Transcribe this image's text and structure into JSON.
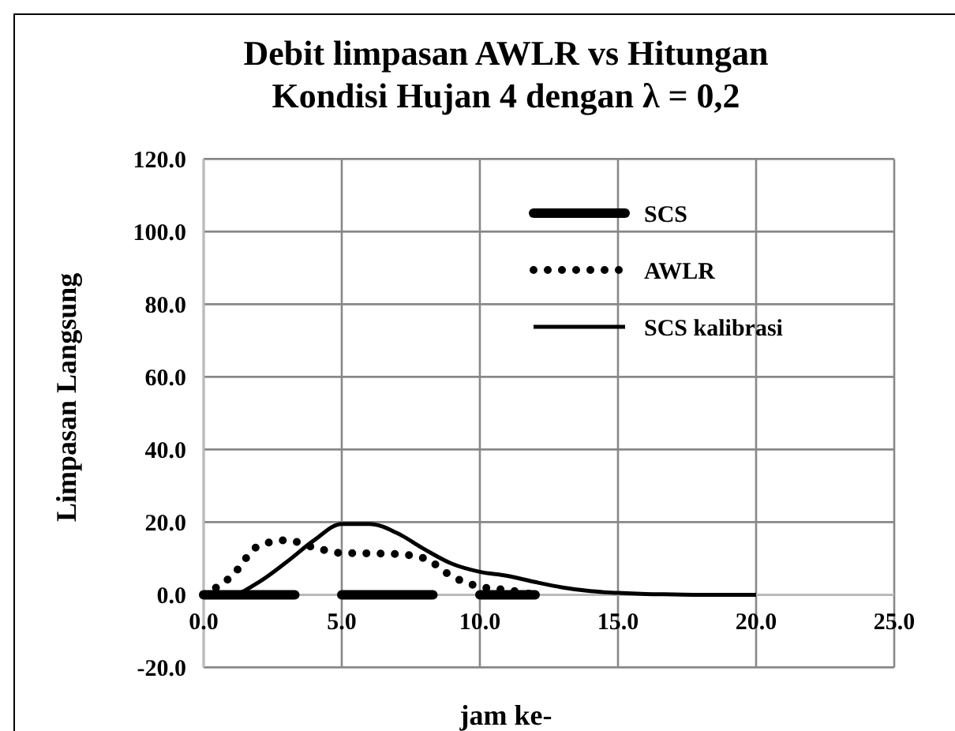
{
  "chart_data": {
    "type": "line",
    "title": "Debit limpasan AWLR vs Hitungan\nKondisi Hujan 4 dengan λ = 0,2",
    "xlabel": "jam ke-",
    "ylabel": "Limpasan Langsung",
    "xlim": [
      0,
      25
    ],
    "ylim": [
      -20,
      120
    ],
    "xticks": [
      {
        "value": 0,
        "label": "0.0"
      },
      {
        "value": 5,
        "label": "5.0"
      },
      {
        "value": 10,
        "label": "10.0"
      },
      {
        "value": 15,
        "label": "15.0"
      },
      {
        "value": 20,
        "label": "20.0"
      },
      {
        "value": 25,
        "label": "25.0"
      }
    ],
    "yticks": [
      {
        "value": -20,
        "label": "-20.0"
      },
      {
        "value": 0,
        "label": "0.0"
      },
      {
        "value": 20,
        "label": "20.0"
      },
      {
        "value": 40,
        "label": "40.0"
      },
      {
        "value": 60,
        "label": "60.0"
      },
      {
        "value": 80,
        "label": "80.0"
      },
      {
        "value": 100,
        "label": "100.0"
      },
      {
        "value": 120,
        "label": "120.0"
      }
    ],
    "grid": true,
    "legend": "top right",
    "marker": "none",
    "series": [
      {
        "name": "SCS",
        "color": "#000000",
        "line_style": "solid",
        "x": [
          0,
          3.3,
          4,
          5,
          8.3,
          9,
          10,
          12
        ],
        "values": [
          0,
          0,
          null,
          0,
          0,
          null,
          0,
          0
        ]
      },
      {
        "name": "AWLR",
        "color": "#000000",
        "line_style": "dotted",
        "x": [
          0,
          1,
          2,
          3,
          4,
          5,
          6,
          7,
          8,
          9,
          10,
          11,
          12
        ],
        "values": [
          0,
          5,
          13.5,
          15,
          13,
          11.5,
          11.4,
          11.2,
          10,
          5,
          2.2,
          1.3,
          0
        ]
      },
      {
        "name": "SCS kalibrasi",
        "color": "#000000",
        "line_style": "solid",
        "x": [
          0,
          1,
          2,
          3,
          4,
          5,
          6,
          7,
          8,
          9,
          10,
          11,
          12,
          13,
          14,
          15,
          16,
          17,
          18,
          19,
          20
        ],
        "values": [
          0,
          0,
          3.5,
          9,
          15,
          19.5,
          19.5,
          17,
          12.5,
          8.5,
          6.3,
          5.2,
          3.5,
          2,
          1,
          0.5,
          0.2,
          0.1,
          0,
          0,
          0
        ]
      }
    ]
  }
}
